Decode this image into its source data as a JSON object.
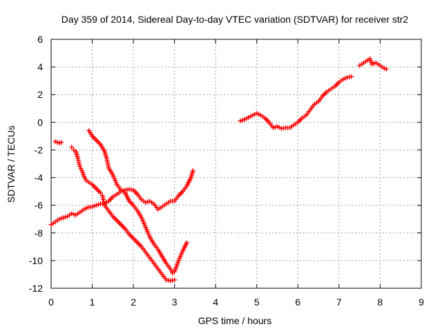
{
  "chart_data": {
    "type": "scatter",
    "title": "Day 359 of 2014, Sidereal Day-to-day VTEC variation (SDTVAR) for receiver str2",
    "xlabel": "GPS time / hours",
    "ylabel": "SDTVAR / TECUs",
    "xlim": [
      0,
      9
    ],
    "ylim": [
      -12,
      6
    ],
    "x_ticks": [
      0,
      1,
      2,
      3,
      4,
      5,
      6,
      7,
      8,
      9
    ],
    "y_ticks": [
      -12,
      -10,
      -8,
      -6,
      -4,
      -2,
      0,
      2,
      4,
      6
    ],
    "grid": true,
    "marker": "plus",
    "color": "#ff0000",
    "series": [
      {
        "x": [
          0.0,
          0.1,
          0.2,
          0.3,
          0.4,
          0.5,
          0.6,
          0.7,
          0.8,
          0.9,
          1.0,
          1.1,
          1.2,
          1.3,
          1.4,
          1.5,
          1.6,
          1.7,
          1.8,
          1.9,
          2.0,
          2.1,
          2.2,
          2.3,
          2.4,
          2.5,
          2.6,
          2.7,
          2.8,
          2.9,
          3.0,
          3.1,
          3.2,
          3.3,
          3.4,
          3.45
        ],
        "y": [
          -7.4,
          -7.2,
          -7.0,
          -6.9,
          -6.8,
          -6.6,
          -6.7,
          -6.5,
          -6.3,
          -6.15,
          -6.1,
          -6.0,
          -5.9,
          -5.9,
          -5.7,
          -5.4,
          -5.2,
          -5.0,
          -4.9,
          -4.85,
          -4.9,
          -5.2,
          -5.6,
          -5.8,
          -5.7,
          -5.9,
          -6.3,
          -6.1,
          -5.9,
          -5.7,
          -5.7,
          -5.3,
          -5.0,
          -4.6,
          -4.0,
          -3.5
        ]
      },
      {
        "x": [
          0.1,
          0.2,
          0.25
        ],
        "y": [
          -1.4,
          -1.5,
          -1.45
        ]
      },
      {
        "x": [
          0.5,
          0.55,
          0.6,
          0.65,
          0.7,
          0.75,
          0.8,
          0.85,
          0.9,
          1.0,
          1.1,
          1.2,
          1.25,
          1.3,
          1.4,
          1.5,
          1.6,
          1.7,
          1.8,
          1.9,
          2.0,
          2.1,
          2.2,
          2.3,
          2.4,
          2.5,
          2.6,
          2.7,
          2.8,
          2.9,
          3.0
        ],
        "y": [
          -1.8,
          -2.0,
          -2.1,
          -2.6,
          -3.2,
          -3.5,
          -3.9,
          -4.2,
          -4.3,
          -4.5,
          -4.8,
          -5.1,
          -5.3,
          -6.0,
          -6.4,
          -6.8,
          -7.1,
          -7.4,
          -7.7,
          -8.1,
          -8.4,
          -8.7,
          -9.0,
          -9.4,
          -9.8,
          -10.2,
          -10.6,
          -11.0,
          -11.4,
          -11.45,
          -11.4
        ]
      },
      {
        "x": [
          0.92,
          1.0,
          1.1,
          1.2,
          1.3,
          1.35,
          1.4,
          1.5,
          1.6,
          1.7,
          1.8,
          1.9,
          2.0,
          2.1,
          2.2,
          2.3,
          2.4,
          2.5,
          2.6,
          2.7,
          2.8,
          2.9,
          2.95,
          3.0,
          3.1,
          3.2,
          3.3
        ],
        "y": [
          -0.6,
          -1.0,
          -1.3,
          -1.6,
          -2.1,
          -2.6,
          -3.3,
          -3.8,
          -4.5,
          -4.9,
          -5.1,
          -5.7,
          -6.0,
          -6.4,
          -6.9,
          -7.6,
          -8.3,
          -8.8,
          -9.2,
          -9.7,
          -10.2,
          -10.6,
          -10.9,
          -10.8,
          -10.0,
          -9.3,
          -8.7
        ]
      },
      {
        "x": [
          4.6,
          4.7,
          4.8,
          4.9,
          5.0,
          5.1,
          5.2,
          5.3,
          5.4,
          5.5,
          5.6,
          5.7,
          5.8,
          5.9,
          6.0,
          6.1,
          6.2,
          6.3,
          6.4,
          6.5,
          6.6,
          6.7,
          6.8,
          6.9,
          7.0,
          7.1,
          7.2,
          7.3
        ],
        "y": [
          0.1,
          0.2,
          0.35,
          0.5,
          0.65,
          0.5,
          0.3,
          0.0,
          -0.4,
          -0.3,
          -0.45,
          -0.4,
          -0.4,
          -0.2,
          0.0,
          0.3,
          0.5,
          0.9,
          1.3,
          1.5,
          1.9,
          2.2,
          2.4,
          2.6,
          2.9,
          3.1,
          3.25,
          3.3
        ]
      },
      {
        "x": [
          7.5,
          7.6,
          7.7,
          7.75,
          7.8,
          7.9,
          8.0,
          8.1,
          8.15
        ],
        "y": [
          4.1,
          4.3,
          4.5,
          4.6,
          4.2,
          4.3,
          4.1,
          3.9,
          3.85
        ]
      }
    ]
  }
}
